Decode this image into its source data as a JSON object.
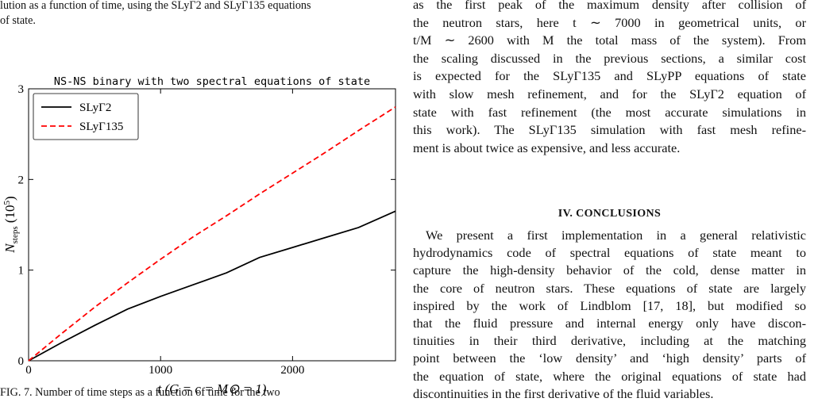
{
  "left_column": {
    "caption_top": [
      "lution as a function of time, using the SLyΓ2 and SLyΓ135 equations",
      "of state."
    ],
    "caption_bottom": "FIG. 7. Number of time steps as a function of time for the two"
  },
  "chart_data": {
    "type": "line",
    "title": "NS-NS binary with two spectral equations of state",
    "x_label": "t (G = c = M⊙ = 1)",
    "y_label": [
      "N",
      "steps",
      " (10",
      "5",
      ")"
    ],
    "x": [
      0,
      250,
      500,
      750,
      1000,
      1250,
      1500,
      1750,
      2000,
      2250,
      2500,
      2780
    ],
    "series": [
      {
        "name": "SLyΓ2",
        "color": "#000000",
        "dash": "solid",
        "values": [
          0,
          0.2,
          0.39,
          0.57,
          0.71,
          0.84,
          0.97,
          1.14,
          1.25,
          1.36,
          1.47,
          1.65
        ]
      },
      {
        "name": "SLyΓ135",
        "color": "#ff0000",
        "dash": "dashed",
        "values": [
          0,
          0.3,
          0.59,
          0.86,
          1.12,
          1.37,
          1.6,
          1.84,
          2.07,
          2.3,
          2.54,
          2.8
        ]
      }
    ],
    "xlim": [
      0,
      2780
    ],
    "ylim": [
      0,
      3
    ],
    "xticks": [
      0,
      1000,
      2000
    ],
    "yticks": [
      0,
      1,
      2,
      3
    ],
    "legend": "upper left",
    "grid": false
  },
  "right_column": {
    "paragraph_1": [
      "as the first peak of the maximum density after collision of",
      "the neutron stars, here t ∼ 7000 in geometrical units, or",
      "t/M ∼ 2600 with M the total mass of the system). From",
      "the scaling discussed in the previous sections, a similar cost",
      "is expected for the SLyΓ135 and SLyPP equations of state",
      "with slow mesh refinement, and for the SLyΓ2 equation of",
      "state with fast refinement (the most accurate simulations in",
      "this work). The SLyΓ135 simulation with fast mesh refine-",
      "ment is about twice as expensive, and less accurate."
    ],
    "heading": "IV.   CONCLUSIONS",
    "paragraph_2": [
      "We present a first implementation in a general relativistic",
      "hydrodynamics code of spectral equations of state meant to",
      "capture the high-density behavior of the cold, dense matter in",
      "the core of neutron stars. These equations of state are largely",
      "inspired by the work of Lindblom [17, 18], but modified so",
      "that the fluid pressure and internal energy only have discon-",
      "tinuities in their third derivative, including at the matching",
      "point between the ‘low density’ and ‘high density’ parts of",
      "the equation of state, where the original equations of state had",
      "discontinuities in the first derivative of the fluid variables."
    ]
  }
}
